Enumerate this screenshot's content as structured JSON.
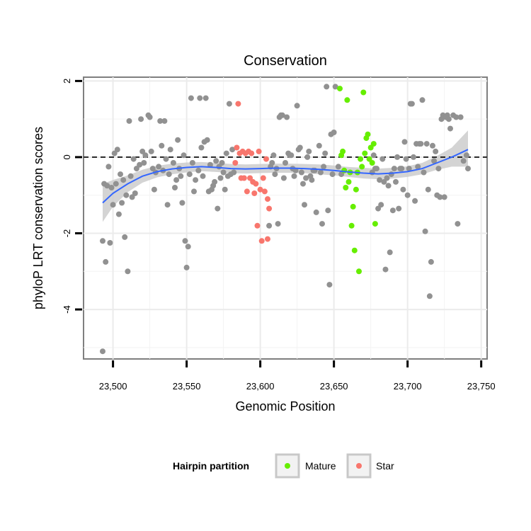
{
  "chart_data": {
    "type": "scatter",
    "title": "Conservation",
    "xlabel": "Genomic Position",
    "ylabel": "phyloP LRT conservation scores",
    "xlim": [
      23480,
      23754
    ],
    "ylim": [
      -5.3,
      2.1
    ],
    "xticks": [
      23500,
      23550,
      23600,
      23650,
      23700,
      23750
    ],
    "xtick_labels": [
      "23,500",
      "23,550",
      "23,600",
      "23,650",
      "23,700",
      "23,750"
    ],
    "yticks": [
      2,
      0,
      -2,
      -4
    ],
    "ytick_labels": [
      "2",
      "0",
      "-2",
      "-4"
    ],
    "grid": true,
    "reference_line": {
      "y": 0,
      "style": "dashed"
    },
    "legend": {
      "title": "Hairpin partition",
      "position": "bottom",
      "entries": [
        {
          "label": "Mature",
          "color": "#66ee00"
        },
        {
          "label": "Star",
          "color": "#f8766d"
        }
      ]
    },
    "colors": {
      "other": "#919191",
      "Mature": "#66ee00",
      "Star": "#f8766d",
      "smooth": "#3366ff",
      "ribbon": "#cccccc"
    },
    "series": [
      {
        "group": "other",
        "points": [
          [
            23493,
            -5.1
          ],
          [
            23493,
            -2.2
          ],
          [
            23494,
            -0.7
          ],
          [
            23495,
            -2.75
          ],
          [
            23496,
            -0.75
          ],
          [
            23497,
            -0.25
          ],
          [
            23498,
            -2.25
          ],
          [
            23499,
            -0.8
          ],
          [
            23500,
            -1.25
          ],
          [
            23501,
            0.1
          ],
          [
            23502,
            -0.7
          ],
          [
            23503,
            0.2
          ],
          [
            23504,
            -1.5
          ],
          [
            23505,
            -0.45
          ],
          [
            23506,
            -1.2
          ],
          [
            23507,
            -0.6
          ],
          [
            23508,
            -2.1
          ],
          [
            23509,
            -1.0
          ],
          [
            23510,
            -3.0
          ],
          [
            23511,
            0.95
          ],
          [
            23512,
            -0.5
          ],
          [
            23513,
            -1.05
          ],
          [
            23514,
            -0.05
          ],
          [
            23515,
            -0.95
          ],
          [
            23516,
            -0.3
          ],
          [
            23518,
            -0.2
          ],
          [
            23519,
            1.0
          ],
          [
            23520,
            0.15
          ],
          [
            23521,
            -0.15
          ],
          [
            23522,
            0.05
          ],
          [
            23524,
            1.1
          ],
          [
            23525,
            1.05
          ],
          [
            23526,
            0.15
          ],
          [
            23527,
            -0.3
          ],
          [
            23528,
            -0.85
          ],
          [
            23529,
            -0.4
          ],
          [
            23531,
            -0.25
          ],
          [
            23532,
            0.95
          ],
          [
            23533,
            0.3
          ],
          [
            23534,
            -0.35
          ],
          [
            23535,
            0.95
          ],
          [
            23536,
            -0.05
          ],
          [
            23537,
            -1.25
          ],
          [
            23538,
            -0.45
          ],
          [
            23539,
            0.2
          ],
          [
            23541,
            -0.15
          ],
          [
            23542,
            -0.8
          ],
          [
            23543,
            -0.6
          ],
          [
            23544,
            0.45
          ],
          [
            23545,
            -0.3
          ],
          [
            23546,
            -0.5
          ],
          [
            23547,
            -1.2
          ],
          [
            23548,
            0.05
          ],
          [
            23549,
            -2.2
          ],
          [
            23550,
            -2.9
          ],
          [
            23551,
            -2.35
          ],
          [
            23552,
            -0.45
          ],
          [
            23553,
            1.55
          ],
          [
            23554,
            -0.15
          ],
          [
            23555,
            -0.9
          ],
          [
            23556,
            -0.6
          ],
          [
            23558,
            -0.35
          ],
          [
            23559,
            1.55
          ],
          [
            23560,
            0.25
          ],
          [
            23561,
            -0.5
          ],
          [
            23562,
            0.4
          ],
          [
            23563,
            1.55
          ],
          [
            23564,
            0.45
          ],
          [
            23565,
            -0.9
          ],
          [
            23566,
            -0.2
          ],
          [
            23567,
            -0.85
          ],
          [
            23568,
            -0.75
          ],
          [
            23569,
            -0.65
          ],
          [
            23570,
            -0.1
          ],
          [
            23571,
            -1.35
          ],
          [
            23572,
            -0.25
          ],
          [
            23573,
            -0.55
          ],
          [
            23574,
            -0.15
          ],
          [
            23575,
            -0.4
          ],
          [
            23576,
            -0.85
          ],
          [
            23577,
            0.1
          ],
          [
            23578,
            -0.5
          ],
          [
            23579,
            1.4
          ],
          [
            23580,
            -0.45
          ],
          [
            23581,
            0.2
          ],
          [
            23582,
            -0.4
          ],
          [
            23606,
            -1.8
          ],
          [
            23607,
            -0.25
          ],
          [
            23608,
            -0.15
          ],
          [
            23609,
            0.05
          ],
          [
            23610,
            -0.45
          ],
          [
            23611,
            -0.3
          ],
          [
            23612,
            -1.75
          ],
          [
            23613,
            1.05
          ],
          [
            23614,
            1.1
          ],
          [
            23615,
            1.1
          ],
          [
            23616,
            -0.55
          ],
          [
            23617,
            -0.15
          ],
          [
            23618,
            1.05
          ],
          [
            23619,
            0.1
          ],
          [
            23620,
            0.05
          ],
          [
            23621,
            0.05
          ],
          [
            23622,
            -0.3
          ],
          [
            23623,
            -0.5
          ],
          [
            23624,
            -0.35
          ],
          [
            23625,
            1.35
          ],
          [
            23626,
            0.2
          ],
          [
            23627,
            0.25
          ],
          [
            23628,
            -0.4
          ],
          [
            23629,
            -0.7
          ],
          [
            23630,
            -1.25
          ],
          [
            23631,
            -0.55
          ],
          [
            23632,
            0.0
          ],
          [
            23633,
            0.15
          ],
          [
            23634,
            -0.5
          ],
          [
            23635,
            -0.6
          ],
          [
            23636,
            -0.35
          ],
          [
            23637,
            -0.35
          ],
          [
            23638,
            -1.45
          ],
          [
            23640,
            0.3
          ],
          [
            23641,
            -0.4
          ],
          [
            23642,
            -1.75
          ],
          [
            23643,
            -0.25
          ],
          [
            23644,
            0.1
          ],
          [
            23645,
            1.85
          ],
          [
            23646,
            -1.4
          ],
          [
            23647,
            -3.35
          ],
          [
            23648,
            0.6
          ],
          [
            23649,
            -0.45
          ],
          [
            23650,
            0.65
          ],
          [
            23651,
            1.85
          ],
          [
            23653,
            -0.25
          ],
          [
            23655,
            -0.45
          ],
          [
            23676,
            -0.4
          ],
          [
            23677,
            0.05
          ],
          [
            23678,
            -0.3
          ],
          [
            23679,
            -0.3
          ],
          [
            23680,
            -1.35
          ],
          [
            23681,
            -0.6
          ],
          [
            23682,
            -1.25
          ],
          [
            23683,
            -0.05
          ],
          [
            23684,
            -0.65
          ],
          [
            23685,
            -2.95
          ],
          [
            23686,
            -0.55
          ],
          [
            23687,
            -0.75
          ],
          [
            23688,
            -2.5
          ],
          [
            23689,
            -0.45
          ],
          [
            23690,
            -1.4
          ],
          [
            23691,
            -0.3
          ],
          [
            23692,
            -0.65
          ],
          [
            23693,
            0.0
          ],
          [
            23694,
            -1.35
          ],
          [
            23695,
            -0.3
          ],
          [
            23696,
            -0.3
          ],
          [
            23697,
            -0.85
          ],
          [
            23698,
            0.4
          ],
          [
            23699,
            -0.05
          ],
          [
            23700,
            -1.0
          ],
          [
            23701,
            -0.3
          ],
          [
            23702,
            1.4
          ],
          [
            23703,
            1.4
          ],
          [
            23704,
            0.0
          ],
          [
            23705,
            -1.15
          ],
          [
            23706,
            0.35
          ],
          [
            23707,
            -0.25
          ],
          [
            23708,
            0.35
          ],
          [
            23709,
            0.35
          ],
          [
            23710,
            1.5
          ],
          [
            23711,
            -0.4
          ],
          [
            23712,
            -1.95
          ],
          [
            23713,
            0.35
          ],
          [
            23714,
            -0.85
          ],
          [
            23715,
            -3.65
          ],
          [
            23716,
            -2.75
          ],
          [
            23717,
            0.3
          ],
          [
            23718,
            -0.1
          ],
          [
            23719,
            0.15
          ],
          [
            23720,
            -1.0
          ],
          [
            23721,
            -0.3
          ],
          [
            23722,
            -1.05
          ],
          [
            23723,
            1.0
          ],
          [
            23724,
            1.1
          ],
          [
            23725,
            -1.05
          ],
          [
            23726,
            1.05
          ],
          [
            23727,
            1.1
          ],
          [
            23728,
            1.0
          ],
          [
            23729,
            0.75
          ],
          [
            23731,
            1.1
          ],
          [
            23733,
            1.05
          ],
          [
            23734,
            -1.75
          ],
          [
            23736,
            1.05
          ],
          [
            23738,
            -0.1
          ],
          [
            23740,
            0.05
          ],
          [
            23741,
            -0.3
          ]
        ]
      },
      {
        "group": "Star",
        "points": [
          [
            23583,
            -0.15
          ],
          [
            23584,
            0.25
          ],
          [
            23585,
            1.4
          ],
          [
            23586,
            0.1
          ],
          [
            23587,
            -0.55
          ],
          [
            23588,
            0.15
          ],
          [
            23589,
            -0.55
          ],
          [
            23590,
            0.1
          ],
          [
            23591,
            -0.9
          ],
          [
            23592,
            0.15
          ],
          [
            23593,
            -0.55
          ],
          [
            23594,
            0.1
          ],
          [
            23595,
            -0.65
          ],
          [
            23596,
            -0.95
          ],
          [
            23597,
            -0.7
          ],
          [
            23598,
            -1.8
          ],
          [
            23599,
            0.15
          ],
          [
            23600,
            -0.85
          ],
          [
            23601,
            -2.2
          ],
          [
            23602,
            -0.55
          ],
          [
            23603,
            -0.9
          ],
          [
            23604,
            -0.05
          ],
          [
            23605,
            -1.1
          ],
          [
            23606,
            -1.35
          ],
          [
            23605,
            -2.15
          ]
        ]
      },
      {
        "group": "Mature",
        "points": [
          [
            23654,
            1.8
          ],
          [
            23655,
            0.05
          ],
          [
            23656,
            0.15
          ],
          [
            23657,
            -0.35
          ],
          [
            23658,
            -0.8
          ],
          [
            23659,
            1.5
          ],
          [
            23660,
            -0.65
          ],
          [
            23661,
            -0.4
          ],
          [
            23662,
            -1.8
          ],
          [
            23663,
            -1.3
          ],
          [
            23664,
            -2.45
          ],
          [
            23665,
            -0.85
          ],
          [
            23666,
            -0.4
          ],
          [
            23667,
            -3.0
          ],
          [
            23668,
            -0.05
          ],
          [
            23669,
            -0.25
          ],
          [
            23670,
            1.7
          ],
          [
            23671,
            0.1
          ],
          [
            23672,
            0.5
          ],
          [
            23673,
            0.6
          ],
          [
            23674,
            -0.05
          ],
          [
            23675,
            0.25
          ],
          [
            23676,
            -0.15
          ],
          [
            23677,
            0.35
          ],
          [
            23678,
            -1.75
          ]
        ]
      }
    ],
    "smooth": {
      "method": "loess",
      "x": [
        23493,
        23500,
        23510,
        23520,
        23530,
        23540,
        23550,
        23560,
        23570,
        23580,
        23590,
        23600,
        23610,
        23620,
        23630,
        23640,
        23650,
        23660,
        23670,
        23680,
        23690,
        23700,
        23710,
        23720,
        23730,
        23741
      ],
      "y": [
        -1.2,
        -0.95,
        -0.7,
        -0.5,
        -0.38,
        -0.31,
        -0.27,
        -0.25,
        -0.27,
        -0.3,
        -0.31,
        -0.3,
        -0.29,
        -0.29,
        -0.3,
        -0.32,
        -0.35,
        -0.39,
        -0.42,
        -0.44,
        -0.42,
        -0.38,
        -0.3,
        -0.15,
        0.0,
        0.2
      ],
      "lower": [
        -1.7,
        -1.3,
        -0.92,
        -0.67,
        -0.53,
        -0.45,
        -0.4,
        -0.37,
        -0.39,
        -0.42,
        -0.43,
        -0.42,
        -0.41,
        -0.41,
        -0.42,
        -0.45,
        -0.48,
        -0.52,
        -0.56,
        -0.58,
        -0.56,
        -0.52,
        -0.45,
        -0.33,
        -0.25,
        -0.25
      ],
      "upper": [
        -0.7,
        -0.6,
        -0.48,
        -0.33,
        -0.23,
        -0.17,
        -0.14,
        -0.13,
        -0.15,
        -0.18,
        -0.19,
        -0.18,
        -0.17,
        -0.17,
        -0.18,
        -0.19,
        -0.22,
        -0.26,
        -0.28,
        -0.3,
        -0.28,
        -0.24,
        -0.15,
        0.03,
        0.25,
        0.7
      ]
    }
  }
}
